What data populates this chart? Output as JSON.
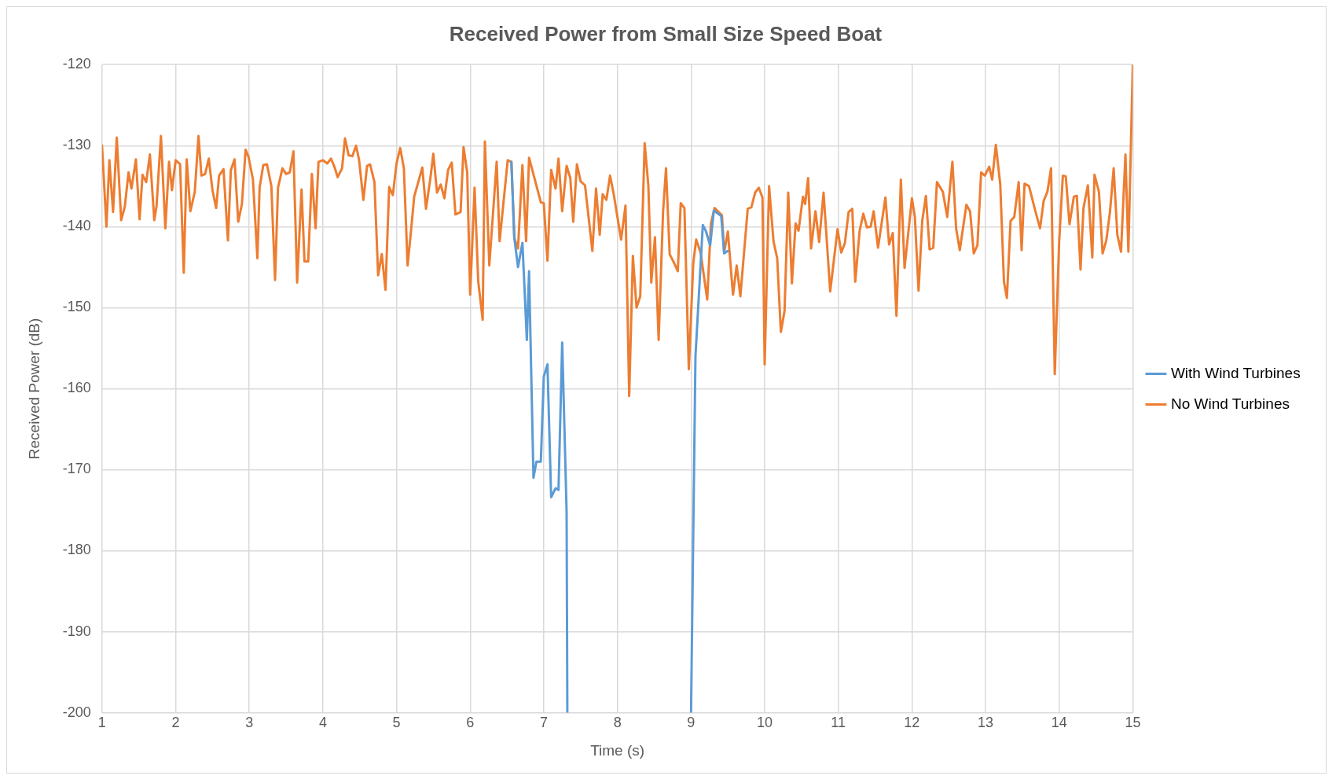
{
  "chart_data": {
    "type": "line",
    "title": "Received Power from Small Size Speed Boat",
    "xlabel": "Time (s)",
    "ylabel": "Received Power (dB)",
    "xlim": [
      1,
      15
    ],
    "xticks": [
      1,
      2,
      3,
      4,
      5,
      6,
      7,
      8,
      9,
      10,
      11,
      12,
      13,
      14,
      15
    ],
    "ylim": [
      -200,
      -120
    ],
    "yticks": [
      -200,
      -190,
      -180,
      -170,
      -160,
      -150,
      -140,
      -130,
      -120
    ],
    "grid": true,
    "legend": "right",
    "marker": "none",
    "line_style": "solid",
    "series": [
      {
        "name": "With Wind Turbines",
        "color": "#5b9bd5",
        "x": [
          6.56,
          6.6,
          6.65,
          6.71,
          6.77,
          6.8,
          6.86,
          6.9,
          6.96,
          7.0,
          7.05,
          7.1,
          7.16,
          7.2,
          7.25,
          7.31,
          7.32,
          8.2,
          9.0,
          9.06,
          9.16,
          9.2,
          9.26,
          9.31,
          9.41,
          9.45,
          9.5
        ],
        "values": [
          -132,
          -141.4,
          -145,
          -142,
          -154,
          -145.5,
          -171,
          -169,
          -169,
          -158.5,
          -157,
          -173.4,
          -172.3,
          -172.5,
          -154.3,
          -175.2,
          -200,
          null,
          -200,
          -156,
          -139.8,
          -140.5,
          -142.3,
          -138,
          -138.7,
          -143.3,
          -143
        ]
      },
      {
        "name": "No Wind Turbines",
        "color": "#ed7d31",
        "x": [
          1.0,
          1.06,
          1.1,
          1.15,
          1.2,
          1.26,
          1.31,
          1.36,
          1.4,
          1.46,
          1.51,
          1.55,
          1.6,
          1.65,
          1.71,
          1.74,
          1.8,
          1.86,
          1.91,
          1.95,
          2.0,
          2.06,
          2.11,
          2.15,
          2.2,
          2.26,
          2.31,
          2.35,
          2.4,
          2.45,
          2.5,
          2.55,
          2.59,
          2.65,
          2.71,
          2.75,
          2.8,
          2.85,
          2.9,
          2.95,
          2.99,
          3.05,
          3.11,
          3.14,
          3.19,
          3.24,
          3.3,
          3.35,
          3.39,
          3.45,
          3.5,
          3.55,
          3.6,
          3.65,
          3.71,
          3.75,
          3.8,
          3.85,
          3.9,
          3.94,
          4.0,
          4.06,
          4.11,
          4.16,
          4.2,
          4.26,
          4.3,
          4.35,
          4.4,
          4.45,
          4.49,
          4.55,
          4.6,
          4.64,
          4.7,
          4.75,
          4.8,
          4.85,
          4.9,
          4.95,
          5.0,
          5.05,
          5.1,
          5.15,
          5.2,
          5.24,
          5.35,
          5.4,
          5.46,
          5.5,
          5.55,
          5.6,
          5.65,
          5.7,
          5.75,
          5.8,
          5.87,
          5.91,
          5.96,
          6.0,
          6.06,
          6.11,
          6.17,
          6.2,
          6.26,
          6.36,
          6.4,
          6.51,
          6.56,
          6.6,
          6.65,
          6.71,
          6.76,
          6.8,
          6.96,
          7.0,
          7.05,
          7.1,
          7.16,
          7.2,
          7.25,
          7.31,
          7.36,
          7.4,
          7.45,
          7.5,
          7.56,
          7.66,
          7.71,
          7.76,
          7.8,
          7.85,
          7.9,
          7.95,
          8.05,
          8.11,
          8.16,
          8.21,
          8.26,
          8.31,
          8.37,
          8.42,
          8.46,
          8.51,
          8.56,
          8.62,
          8.66,
          8.71,
          8.77,
          8.82,
          8.86,
          8.91,
          8.97,
          9.03,
          9.07,
          9.13,
          9.22,
          9.27,
          9.32,
          9.42,
          9.45,
          9.5,
          9.57,
          9.62,
          9.67,
          9.77,
          9.82,
          9.87,
          9.92,
          9.97,
          10.0,
          10.06,
          10.12,
          10.17,
          10.22,
          10.27,
          10.32,
          10.37,
          10.42,
          10.46,
          10.52,
          10.55,
          10.59,
          10.63,
          10.69,
          10.74,
          10.8,
          10.89,
          10.99,
          11.04,
          11.09,
          11.14,
          11.19,
          11.23,
          11.29,
          11.34,
          11.39,
          11.44,
          11.48,
          11.54,
          11.64,
          11.69,
          11.74,
          11.79,
          11.85,
          11.9,
          12.0,
          12.04,
          12.09,
          12.14,
          12.19,
          12.24,
          12.29,
          12.34,
          12.42,
          12.48,
          12.55,
          12.6,
          12.65,
          12.74,
          12.79,
          12.84,
          12.89,
          12.94,
          12.99,
          13.05,
          13.09,
          13.14,
          13.2,
          13.25,
          13.29,
          13.34,
          13.39,
          13.45,
          13.49,
          13.53,
          13.59,
          13.68,
          13.74,
          13.79,
          13.84,
          13.89,
          13.94,
          14.0,
          14.05,
          14.09,
          14.14,
          14.2,
          14.24,
          14.29,
          14.33,
          14.39,
          14.45,
          14.48,
          14.54,
          14.59,
          14.64,
          14.69,
          14.74,
          14.79,
          14.84,
          14.9,
          14.94,
          15.0
        ],
        "values": [
          -130,
          -140,
          -131.8,
          -138.2,
          -129,
          -139.2,
          -137.5,
          -133.3,
          -135.3,
          -131.7,
          -139.1,
          -133.6,
          -134.5,
          -131.1,
          -139.2,
          -137.5,
          -128.8,
          -140.2,
          -132,
          -135.5,
          -131.8,
          -132.3,
          -145.7,
          -131.7,
          -138.1,
          -135.7,
          -128.8,
          -133.7,
          -133.5,
          -131.6,
          -135.5,
          -137.7,
          -133.7,
          -132.9,
          -141.7,
          -133,
          -131.7,
          -139.4,
          -137.2,
          -130.5,
          -131.4,
          -134.2,
          -143.9,
          -135.2,
          -132.4,
          -132.3,
          -135,
          -146.6,
          -135.2,
          -132.8,
          -133.5,
          -133.3,
          -130.7,
          -146.9,
          -135.4,
          -144.3,
          -144.3,
          -133.5,
          -140.2,
          -132,
          -131.8,
          -132.2,
          -131.6,
          -132.7,
          -133.9,
          -132.8,
          -129.1,
          -131.2,
          -131.3,
          -130,
          -131.7,
          -136.7,
          -132.5,
          -132.3,
          -134.5,
          -146,
          -143.4,
          -147.8,
          -135.1,
          -136.1,
          -132.2,
          -130.3,
          -132.8,
          -144.8,
          -140.2,
          -136.3,
          -132.7,
          -137.8,
          -134,
          -131,
          -135.8,
          -134.8,
          -136.5,
          -133,
          -132.1,
          -138.5,
          -138.2,
          -130.2,
          -133.3,
          -148.4,
          -135.2,
          -146.8,
          -151.5,
          -129.5,
          -144.8,
          -132,
          -141.8,
          -131.8,
          -132,
          -141.4,
          -142.7,
          -132.4,
          -141.8,
          -131.5,
          -137,
          -137.1,
          -144.2,
          -133,
          -135.3,
          -131.6,
          -138.1,
          -132.5,
          -134,
          -139.4,
          -132.3,
          -134.4,
          -134.9,
          -143,
          -135.3,
          -141,
          -136,
          -136.7,
          -133.7,
          -136,
          -141.6,
          -137.4,
          -160.9,
          -143.6,
          -150,
          -148.6,
          -129.7,
          -134.9,
          -146.9,
          -141.3,
          -154,
          -138.2,
          -132.8,
          -143.4,
          -144.5,
          -145.5,
          -137.1,
          -137.7,
          -157.6,
          -144.5,
          -141.6,
          -143.2,
          -149,
          -139.6,
          -137.7,
          -138.6,
          -143.2,
          -140.6,
          -148.4,
          -144.8,
          -148.6,
          -137.8,
          -137.6,
          -135.8,
          -135.2,
          -136.4,
          -157,
          -135,
          -141.8,
          -143.9,
          -153,
          -150.4,
          -135.8,
          -147,
          -139.6,
          -140.5,
          -136.3,
          -137.2,
          -134,
          -142.7,
          -138.1,
          -141.9,
          -135.8,
          -148,
          -140.3,
          -143.2,
          -142,
          -138.2,
          -137.8,
          -146.8,
          -140.5,
          -138.4,
          -140.1,
          -140,
          -138.1,
          -142.6,
          -136.4,
          -142.2,
          -140.8,
          -151,
          -134.2,
          -145.1,
          -136.5,
          -138.8,
          -147.9,
          -139.3,
          -136.2,
          -142.8,
          -142.6,
          -134.5,
          -135.7,
          -138.8,
          -132,
          -140.2,
          -142.9,
          -137.3,
          -138.1,
          -143.3,
          -142.3,
          -133.3,
          -133.7,
          -132.6,
          -134.2,
          -129.9,
          -134.8,
          -146.8,
          -148.8,
          -139.3,
          -138.8,
          -134.5,
          -142.9,
          -134.7,
          -135,
          -138.2,
          -140.2,
          -136.8,
          -135.7,
          -132.8,
          -158.2,
          -141.8,
          -133.7,
          -133.8,
          -139.7,
          -136.3,
          -136.2,
          -145.3,
          -137.7,
          -134.9,
          -143.8,
          -133.6,
          -135.7,
          -143.3,
          -141.7,
          -138.2,
          -132.8,
          -141,
          -143.1,
          -131.1,
          -143.1,
          -120
        ]
      }
    ]
  }
}
